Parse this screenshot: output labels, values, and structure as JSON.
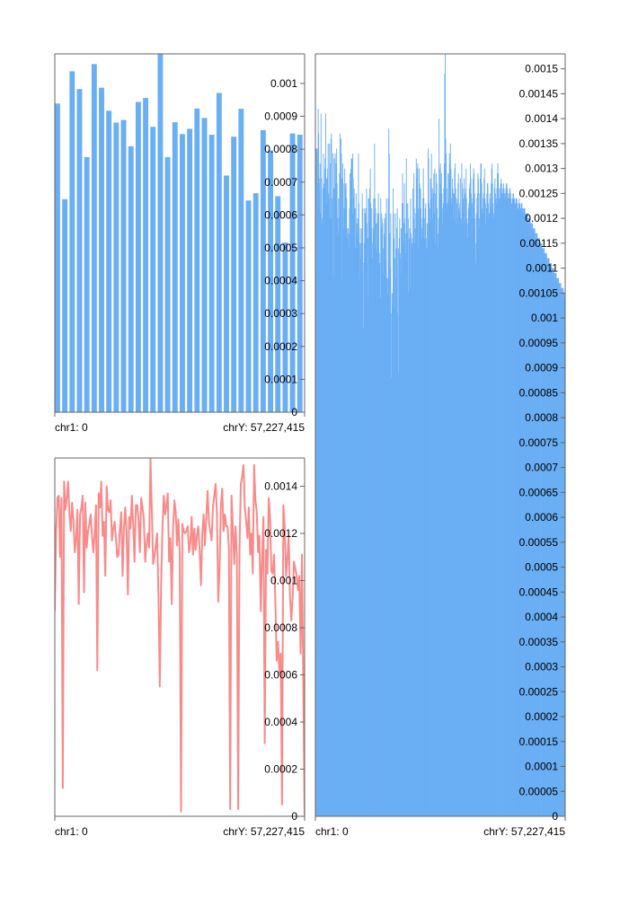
{
  "colors": {
    "bar": "#6aaef4",
    "line": "#f98a8a",
    "axis": "#666666",
    "background": "#ffffff"
  },
  "chart_data": [
    {
      "type": "bar",
      "title": "",
      "xlabel": "",
      "ylabel": "",
      "x_start_label": "chr1: 0",
      "x_end_label": "chrY: 57,227,415",
      "ylim": [
        0,
        0.00109
      ],
      "yticks": [
        "0",
        "0.0001",
        "0.0002",
        "0.0003",
        "0.0004",
        "0.0005",
        "0.0006",
        "0.0007",
        "0.0008",
        "0.0009",
        "0.001"
      ],
      "grid": false,
      "values": [
        0.000939,
        0.000648,
        0.001037,
        0.000983,
        0.000776,
        0.001059,
        0.000987,
        0.000917,
        0.000881,
        0.000889,
        0.000809,
        0.000944,
        0.000956,
        0.000868,
        0.001093,
        0.000776,
        0.000882,
        0.000846,
        0.000862,
        0.000924,
        0.000895,
        0.000844,
        0.000971,
        0.00072,
        0.000838,
        0.000923,
        0.000644,
        0.000666,
        0.000858,
        0.000796,
        0.000657,
        0.000516,
        0.000848,
        0.000844
      ]
    },
    {
      "type": "line",
      "title": "",
      "xlabel": "",
      "ylabel": "",
      "x_start_label": "chr1: 0",
      "x_end_label": "chrY: 57,227,415",
      "ylim": [
        0,
        0.00152
      ],
      "yticks": [
        "0",
        "0.0002",
        "0.0004",
        "0.0006",
        "0.0008",
        "0.001",
        "0.0012",
        "0.0014"
      ],
      "grid": false,
      "values": [
        0.00087,
        0.00121,
        0.00135,
        0.00136,
        0.0011,
        0.00135,
        0.00012,
        0.00142,
        0.0013,
        0.00135,
        0.00142,
        0.00128,
        0.00121,
        0.00133,
        0.00126,
        0.00112,
        0.00118,
        0.0013,
        0.0009,
        0.00128,
        0.00131,
        0.00136,
        0.00095,
        0.00133,
        0.00114,
        0.00121,
        0.00124,
        0.00128,
        0.00119,
        0.00112,
        0.0012,
        0.00132,
        0.00062,
        0.00137,
        0.00131,
        0.00142,
        0.00119,
        0.00125,
        0.00102,
        0.0014,
        0.0013,
        0.00129,
        0.00134,
        0.00117,
        0.00122,
        0.00125,
        0.00118,
        0.0011,
        0.00111,
        0.00122,
        0.00129,
        0.00102,
        0.00122,
        0.00131,
        0.00121,
        0.00094,
        0.00127,
        0.00122,
        0.00136,
        0.00124,
        0.00108,
        0.00132,
        0.00132,
        0.00126,
        0.00112,
        0.00135,
        0.00131,
        0.00126,
        0.00108,
        0.00115,
        0.0012,
        0.00114,
        0.00152,
        0.0013,
        0.00107,
        0.0011,
        0.00115,
        0.0012,
        0.00094,
        0.00055,
        0.00098,
        0.00122,
        0.00136,
        0.00128,
        0.00132,
        0.00137,
        0.00108,
        0.00118,
        0.0009,
        0.00122,
        0.00134,
        0.00129,
        0.00115,
        0.00126,
        0.00111,
        2e-05,
        0.00124,
        0.00121,
        0.0012,
        0.00121,
        0.00123,
        0.00112,
        0.00116,
        0.00127,
        0.00111,
        0.00122,
        0.00113,
        0.00119,
        0.00123,
        0.00113,
        0.00098,
        0.0012,
        0.00128,
        0.00115,
        0.00127,
        0.00138,
        0.00125,
        0.00121,
        0.00117,
        0.00131,
        0.00136,
        0.00141,
        0.00129,
        0.00091,
        0.00105,
        0.00132,
        0.00139,
        0.00121,
        0.00128,
        0.00123,
        0.00123,
        0.00114,
        3e-05,
        0.00136,
        0.00123,
        0.00107,
        0.00123,
        0.00111,
        3e-05,
        0.00113,
        0.00141,
        0.00144,
        0.00149,
        0.00131,
        0.00125,
        0.00118,
        0.00131,
        0.00111,
        0.0012,
        0.00103,
        0.00149,
        0.00134,
        0.00129,
        0.00112,
        0.00119,
        0.00087,
        0.0011,
        0.00127,
        0.00031,
        0.00113,
        0.00103,
        0.00135,
        0.00127,
        0.00104,
        0.00103,
        0.00111,
        0.00091,
        0.00066,
        0.00074,
        0.00061,
        0.00069,
        5e-05,
        0.00132,
        0.00123,
        0.00102,
        0.00109,
        0.00119,
        0.00093,
        0.00083,
        0.00093,
        0.00108,
        0.00105,
        0.00102,
        0.00096,
        0.00102,
        0.00069,
        0.00111,
        0.00057,
        0.0
      ]
    },
    {
      "type": "bar",
      "title": "",
      "xlabel": "",
      "ylabel": "",
      "x_start_label": "chr1: 0",
      "x_end_label": "chrY: 57,227,415",
      "ylim": [
        0,
        0.00153
      ],
      "yticks": [
        "0",
        "0.00005",
        "0.0001",
        "0.00015",
        "0.0002",
        "0.00025",
        "0.0003",
        "0.00035",
        "0.0004",
        "0.00045",
        "0.0005",
        "0.00055",
        "0.0006",
        "0.00065",
        "0.0007",
        "0.00075",
        "0.0008",
        "0.00085",
        "0.0009",
        "0.00095",
        "0.001",
        "0.00105",
        "0.0011",
        "0.00115",
        "0.0012",
        "0.00125",
        "0.0013",
        "0.00135",
        "0.0014",
        "0.00145",
        "0.0015"
      ],
      "grid": false,
      "values": [
        0.00108,
        0.00134,
        0.00133,
        0.00134,
        0.00127,
        0.00142,
        0.00137,
        0.00127,
        0.00128,
        0.00131,
        0.00121,
        0.00141,
        0.00128,
        0.00119,
        0.0012,
        0.00126,
        0.00133,
        0.00127,
        0.00126,
        0.0013,
        0.00132,
        0.00141,
        0.00123,
        0.00128,
        0.00128,
        0.0013,
        0.00135,
        0.00125,
        0.00124,
        0.00135,
        0.00131,
        0.0012,
        0.00136,
        0.00137,
        0.00124,
        0.0012,
        0.00133,
        0.00108,
        0.00126,
        0.00132,
        0.00126,
        0.00133,
        0.00127,
        0.00131,
        0.00134,
        0.00127,
        0.0012,
        0.00117,
        0.00124,
        0.0012,
        0.00129,
        0.00137,
        0.00129,
        0.00136,
        0.00133,
        0.00108,
        0.00128,
        0.00131,
        0.00127,
        0.00118,
        0.00122,
        0.0013,
        0.00126,
        0.00127,
        0.00127,
        0.00124,
        0.00118,
        0.00116,
        0.00118,
        0.00117,
        0.00114,
        0.00122,
        0.00129,
        0.00124,
        0.0013,
        0.00132,
        0.00132,
        0.00121,
        0.00133,
        0.00128,
        0.00124,
        0.00126,
        0.00122,
        0.00114,
        0.00122,
        0.00125,
        0.00119,
        0.00117,
        0.0012,
        0.00119,
        0.00133,
        0.00123,
        0.00115,
        0.00108,
        0.00118,
        0.00112,
        0.00115,
        0.00118,
        0.00125,
        0.00122,
        0.00111,
        0.00098,
        0.00115,
        0.00122,
        0.00121,
        0.00121,
        0.00122,
        0.00126,
        0.00119,
        0.00116,
        0.00104,
        0.00124,
        0.00124,
        0.00119,
        0.00126,
        0.0013,
        0.00123,
        0.00118,
        0.00122,
        0.00112,
        0.00115,
        0.00118,
        0.00124,
        0.00121,
        0.00135,
        0.00124,
        0.00122,
        0.00114,
        0.00119,
        0.00113,
        0.00121,
        0.00119,
        0.00125,
        0.00121,
        0.00113,
        0.00111,
        0.00104,
        0.00124,
        0.00118,
        0.00121,
        0.0012,
        0.00119,
        0.00114,
        0.00109,
        0.00117,
        0.0012,
        0.00116,
        0.00121,
        0.00112,
        0.00124,
        0.00108,
        0.00105,
        0.00108,
        0.00124,
        0.00138,
        0.00133,
        0.00117,
        0.0011,
        0.00121,
        0.00101,
        0.00088,
        0.00105,
        0.00103,
        0.00126,
        0.00121,
        0.00116,
        0.00102,
        0.00112,
        0.00121,
        0.00108,
        0.00114,
        0.00118,
        0.00122,
        0.00101,
        0.00114,
        0.00089,
        0.00116,
        0.0012,
        0.00112,
        0.00113,
        0.00118,
        0.00109,
        0.00123,
        0.00129,
        0.00123,
        0.00119,
        0.00115,
        0.00127,
        0.0012,
        0.00113,
        0.00117,
        0.00132,
        0.00123,
        0.00117,
        0.00123,
        0.0012,
        0.00105,
        0.00116,
        0.00118,
        0.00106,
        0.00124,
        0.00117,
        0.00116,
        0.00114,
        0.00115,
        0.00126,
        0.0012,
        0.00129,
        0.00122,
        0.00115,
        0.00118,
        0.00121,
        0.00132,
        0.00128,
        0.0013,
        0.00131,
        0.00122,
        0.00114,
        0.0013,
        0.00127,
        0.0012,
        0.00126,
        0.00122,
        0.00118,
        0.00116,
        0.0012,
        0.00124,
        0.0013,
        0.00124,
        0.0012,
        0.00116,
        0.00122,
        0.00123,
        0.00116,
        0.00114,
        0.00119,
        0.00114,
        0.00134,
        0.00132,
        0.00123,
        0.00122,
        0.00119,
        0.00128,
        0.00127,
        0.00133,
        0.00124,
        0.00126,
        0.0012,
        0.00125,
        0.00129,
        0.00121,
        0.0013,
        0.00125,
        0.00115,
        0.00129,
        0.00127,
        0.00122,
        0.00117,
        0.00114,
        0.0012,
        0.0014,
        0.0013,
        0.00125,
        0.00131,
        0.00127,
        0.00129,
        0.00125,
        0.00122,
        0.00119,
        0.00123,
        0.00126,
        0.00131,
        0.00149,
        0.00155,
        0.00136,
        0.00133,
        0.00126,
        0.00122,
        0.00123,
        0.00129,
        0.00129,
        0.00124,
        0.00133,
        0.00131,
        0.00135,
        0.0013,
        0.00124,
        0.00123,
        0.00128,
        0.00126,
        0.00125,
        0.0012,
        0.00125,
        0.0013,
        0.00131,
        0.00126,
        0.00119,
        0.00124,
        0.00123,
        0.0012,
        0.00127,
        0.00129,
        0.00122,
        0.00121,
        0.00123,
        0.00128,
        0.0012,
        0.00119,
        0.00131,
        0.00127,
        0.00126,
        0.00121,
        0.00124,
        0.00128,
        0.00119,
        0.00125,
        0.00126,
        0.0013,
        0.00124,
        0.0012,
        0.00116,
        0.00119,
        0.00122,
        0.00123,
        0.00126,
        0.00127,
        0.00131,
        0.00128,
        0.00125,
        0.00123,
        0.0012,
        0.00124,
        0.00128,
        0.0013,
        0.00129,
        0.00125,
        0.0012,
        0.00115,
        0.00111,
        0.00121,
        0.00124,
        0.00125,
        0.00129,
        0.00128,
        0.0012,
        0.00118,
        0.00125,
        0.00128,
        0.00131,
        0.00131,
        0.00127,
        0.00122,
        0.00121,
        0.00124,
        0.00125,
        0.00128,
        0.0013,
        0.00124,
        0.00123,
        0.00119,
        0.00122,
        0.00125,
        0.00127,
        0.00127,
        0.00123,
        0.0012,
        0.00121,
        0.00125,
        0.00124,
        0.00122,
        0.00127,
        0.0013,
        0.00131,
        0.00127,
        0.00123,
        0.00121,
        0.0012,
        0.00126,
        0.00128,
        0.00125,
        0.00124,
        0.00123,
        0.00126,
        0.00129,
        0.00131,
        0.00129,
        0.00126,
        0.00124,
        0.00124,
        0.00126,
        0.00127,
        0.00128,
        0.00127,
        0.00125,
        0.00125,
        0.00126,
        0.00127,
        0.00126,
        0.00125,
        0.00124,
        0.00125,
        0.00126,
        0.00127,
        0.00127,
        0.00126,
        0.00125,
        0.00124,
        0.00124,
        0.00125,
        0.00126,
        0.00126,
        0.00125,
        0.00124,
        0.00123,
        0.00123,
        0.00124,
        0.00125,
        0.00125,
        0.00124,
        0.00124,
        0.00123,
        0.00123,
        0.00124,
        0.00124,
        0.00124,
        0.00123,
        0.00122,
        0.00122,
        0.00123,
        0.00124,
        0.00123,
        0.00123,
        0.00122,
        0.00122,
        0.00123,
        0.00123,
        0.00122,
        0.00122,
        0.00121,
        0.00122,
        0.00122,
        0.00122,
        0.00121,
        0.00121,
        0.0012,
        0.00121,
        0.00121,
        0.00121,
        0.0012,
        0.0012,
        0.00119,
        0.0012,
        0.0012,
        0.00119,
        0.00119,
        0.00118,
        0.00119,
        0.00119,
        0.00118,
        0.00118,
        0.00117,
        0.00118,
        0.00118,
        0.00117,
        0.00117,
        0.00116,
        0.00117,
        0.00117,
        0.00116,
        0.00116,
        0.00115,
        0.00116,
        0.00116,
        0.00115,
        0.00115,
        0.00114,
        0.00115,
        0.00115,
        0.00114,
        0.00114,
        0.00113,
        0.00114,
        0.00114,
        0.00113,
        0.00113,
        0.00112,
        0.00113,
        0.00113,
        0.00112,
        0.00112,
        0.00111,
        0.00112,
        0.00112,
        0.00111,
        0.00111,
        0.0011,
        0.00111,
        0.00111,
        0.0011,
        0.0011,
        0.00109,
        0.0011,
        0.0011,
        0.00109,
        0.00109,
        0.00108,
        0.00109,
        0.00109,
        0.00108,
        0.00108,
        0.00107,
        0.00108,
        0.00108,
        0.00107,
        0.00107,
        0.00106,
        0.00107,
        0.00107,
        0.00106,
        0.00106,
        0.00105,
        0.00106,
        0.00106,
        0.00105,
        0.00105,
        0.00104,
        0.00105
      ]
    }
  ]
}
